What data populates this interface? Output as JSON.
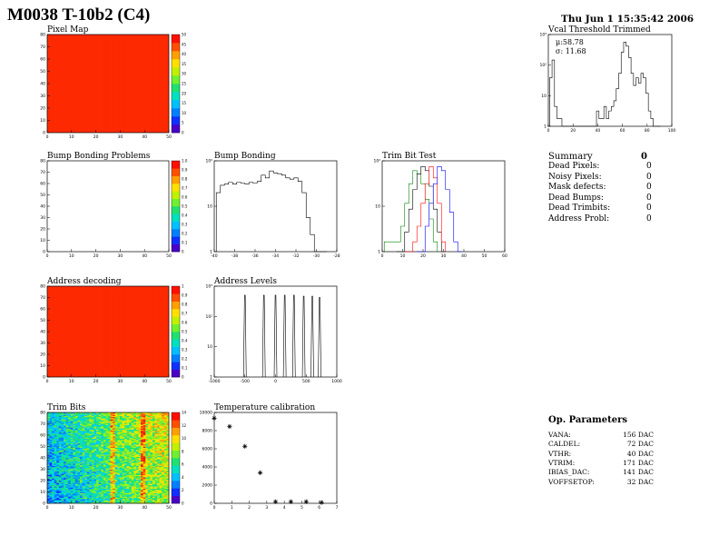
{
  "header": {
    "title": "M0038 T-10b2 (C4)",
    "datetime": "Thu Jun  1 15:35:42 2006"
  },
  "panels": {
    "pixel_map": {
      "title": "Pixel Map"
    },
    "vcal": {
      "title": "Vcal Threshold Trimmed",
      "stats": {
        "mean": "μ:58.78",
        "sigma": "σ: 11.68"
      }
    },
    "bump_problems": {
      "title": "Bump Bonding Problems"
    },
    "bump_bonding": {
      "title": "Bump Bonding"
    },
    "trim_bit_test": {
      "title": "Trim Bit Test"
    },
    "address_decoding": {
      "title": "Address decoding"
    },
    "address_levels": {
      "title": "Address Levels"
    },
    "trim_bits": {
      "title": "Trim Bits"
    },
    "temperature": {
      "title": "Temperature calibration"
    }
  },
  "summary": {
    "title": "Summary",
    "total": "0",
    "rows": [
      {
        "label": "Dead Pixels:",
        "value": "0"
      },
      {
        "label": "Noisy Pixels:",
        "value": "0"
      },
      {
        "label": "Mask defects:",
        "value": "0"
      },
      {
        "label": "Dead Bumps:",
        "value": "0"
      },
      {
        "label": "Dead Trimbits:",
        "value": "0"
      },
      {
        "label": "Address Probl:",
        "value": "0"
      }
    ]
  },
  "op_params": {
    "title": "Op. Parameters",
    "rows": [
      {
        "label": "VANA:",
        "value": "156 DAC"
      },
      {
        "label": "CALDEL:",
        "value": "72 DAC"
      },
      {
        "label": "VTHR:",
        "value": "40 DAC"
      },
      {
        "label": "VTRIM:",
        "value": "171 DAC"
      },
      {
        "label": "IBIAS_DAC:",
        "value": "141 DAC"
      },
      {
        "label": "VOFFSETOP:",
        "value": "32 DAC"
      }
    ]
  },
  "chart_data": [
    {
      "id": "pixel_map",
      "type": "heatmap",
      "title": "Pixel Map",
      "xlim": [
        0,
        52
      ],
      "ylim": [
        0,
        80
      ],
      "xticks": [
        "0",
        "10",
        "20",
        "30",
        "40",
        "50"
      ],
      "yticks": [
        "0",
        "10",
        "20",
        "30",
        "40",
        "50",
        "60",
        "70",
        "80"
      ],
      "zticks": [
        "0",
        "5",
        "10",
        "15",
        "20",
        "25",
        "30",
        "35",
        "40",
        "45",
        "50"
      ],
      "fill_color": "#ff2a00"
    },
    {
      "id": "vcal",
      "type": "line",
      "title": "Vcal Threshold Trimmed",
      "xlim": [
        0,
        100
      ],
      "log_y": true,
      "ylim": [
        0.5,
        2000
      ],
      "xticks": [
        "0",
        "20",
        "40",
        "60",
        "80",
        "100"
      ],
      "yticks": [
        "1",
        "10",
        "10²",
        "10³"
      ],
      "x": [
        0,
        2,
        4,
        6,
        8,
        10,
        12,
        14,
        16,
        18,
        20,
        22,
        24,
        26,
        28,
        30,
        32,
        34,
        36,
        38,
        40,
        42,
        44,
        46,
        48,
        50,
        52,
        54,
        56,
        58,
        60,
        62,
        64,
        66,
        68,
        70,
        72,
        74,
        76,
        78,
        80,
        82,
        84,
        86,
        88,
        90
      ],
      "y": [
        0,
        40,
        200,
        3,
        1,
        1,
        0,
        0,
        0,
        0,
        0,
        0,
        0,
        0,
        0,
        0,
        0,
        0,
        0,
        0,
        2,
        1,
        1,
        3,
        1,
        2,
        3,
        5,
        15,
        60,
        400,
        1000,
        700,
        250,
        60,
        20,
        40,
        25,
        60,
        40,
        10,
        2,
        1,
        0,
        0,
        0
      ]
    },
    {
      "id": "bump_problems",
      "type": "heatmap",
      "title": "Bump Bonding Problems",
      "xlim": [
        0,
        52
      ],
      "ylim": [
        0,
        80
      ],
      "xticks": [
        "0",
        "10",
        "20",
        "30",
        "40",
        "50"
      ],
      "yticks": [
        "0",
        "10",
        "20",
        "30",
        "40",
        "50",
        "60",
        "70",
        "80"
      ],
      "zticks": [
        "0",
        "0.1",
        "0.2",
        "0.3",
        "0.4",
        "0.5",
        "0.6",
        "0.7",
        "0.8",
        "0.9",
        "1.0"
      ],
      "fill_color": "#ffffff"
    },
    {
      "id": "bump_bonding",
      "type": "line",
      "title": "Bump Bonding",
      "xlim": [
        -40,
        -28
      ],
      "log_y": true,
      "ylim": [
        0.5,
        800
      ],
      "xticks": [
        "-40",
        "-38",
        "-36",
        "-34",
        "-32",
        "-30",
        "-28"
      ],
      "yticks": [
        "1",
        "10",
        "10²"
      ],
      "x": [
        -39.6,
        -39.2,
        -38.8,
        -38.4,
        -38.0,
        -37.6,
        -37.2,
        -36.8,
        -36.4,
        -36.0,
        -35.6,
        -35.2,
        -34.8,
        -34.4,
        -34.0,
        -33.6,
        -33.2,
        -32.8,
        -32.4,
        -32.0,
        -31.6,
        -31.2,
        -30.8,
        -30.4,
        -30.0,
        -29.6,
        -29.2
      ],
      "y": [
        60,
        110,
        120,
        140,
        120,
        140,
        130,
        120,
        140,
        130,
        150,
        250,
        200,
        350,
        300,
        280,
        250,
        200,
        180,
        200,
        150,
        60,
        8,
        2,
        0,
        0,
        0
      ]
    },
    {
      "id": "trim_bit_test",
      "type": "line",
      "title": "Trim Bit Test",
      "xlim": [
        0,
        60
      ],
      "log_y": true,
      "ylim": [
        0.5,
        300
      ],
      "xticks": [
        "0",
        "10",
        "20",
        "30",
        "40",
        "50",
        "60"
      ],
      "yticks": [
        "1",
        "10",
        "10²"
      ],
      "series": [
        {
          "color": "#008000",
          "x": [
            2,
            4,
            6,
            8,
            10,
            12,
            14,
            16,
            18,
            20,
            22,
            24,
            26
          ],
          "y": [
            1,
            1,
            1,
            1,
            3,
            15,
            60,
            150,
            120,
            60,
            20,
            5,
            1
          ]
        },
        {
          "color": "#000000",
          "x": [
            8,
            10,
            12,
            14,
            16,
            18,
            20,
            22,
            24,
            26,
            28,
            30
          ],
          "y": [
            0,
            0,
            2,
            10,
            40,
            120,
            200,
            150,
            50,
            10,
            2,
            0
          ]
        },
        {
          "color": "#ff0000",
          "x": [
            12,
            14,
            16,
            18,
            20,
            22,
            24,
            26,
            28,
            30
          ],
          "y": [
            0,
            0,
            1,
            3,
            15,
            60,
            200,
            90,
            15,
            1
          ]
        },
        {
          "color": "#0000ff",
          "x": [
            18,
            20,
            22,
            24,
            26,
            28,
            30,
            32,
            34,
            36,
            38
          ],
          "y": [
            0,
            0,
            3,
            15,
            60,
            200,
            150,
            40,
            8,
            1,
            0
          ]
        }
      ]
    },
    {
      "id": "address_decoding",
      "type": "heatmap",
      "title": "Address decoding",
      "xlim": [
        0,
        52
      ],
      "ylim": [
        0,
        80
      ],
      "xticks": [
        "0",
        "10",
        "20",
        "30",
        "40",
        "50"
      ],
      "yticks": [
        "0",
        "10",
        "20",
        "30",
        "40",
        "50",
        "60",
        "70",
        "80"
      ],
      "zticks": [
        "0",
        "0.1",
        "0.2",
        "0.3",
        "0.4",
        "0.5",
        "0.6",
        "0.7",
        "0.8",
        "0.9",
        "1"
      ],
      "fill_color": "#ff2a00"
    },
    {
      "id": "address_levels",
      "type": "line",
      "title": "Address Levels",
      "xlim": [
        -1000,
        1000
      ],
      "log_y": true,
      "ylim": [
        0.5,
        5000
      ],
      "xticks": [
        "-1000",
        "-500",
        "0",
        "500",
        "1000"
      ],
      "yticks": [
        "1",
        "10",
        "10²",
        "10³"
      ],
      "peaks": [
        {
          "x": -500,
          "y": 2000
        },
        {
          "x": -190,
          "y": 2000
        },
        {
          "x": 0,
          "y": 2000
        },
        {
          "x": 150,
          "y": 2000
        },
        {
          "x": 300,
          "y": 2000
        },
        {
          "x": 460,
          "y": 1800
        },
        {
          "x": 600,
          "y": 1800
        },
        {
          "x": 720,
          "y": 1600
        }
      ]
    },
    {
      "id": "trim_bits",
      "type": "heatmap",
      "title": "Trim Bits",
      "xlim": [
        0,
        52
      ],
      "ylim": [
        0,
        80
      ],
      "xticks": [
        "0",
        "10",
        "20",
        "30",
        "40",
        "50"
      ],
      "yticks": [
        "0",
        "10",
        "20",
        "30",
        "40",
        "50",
        "60",
        "70",
        "80"
      ],
      "zticks": [
        "0",
        "2",
        "4",
        "6",
        "8",
        "10",
        "12",
        "14"
      ]
    },
    {
      "id": "temperature",
      "type": "scatter",
      "title": "Temperature calibration",
      "xlim": [
        0,
        8
      ],
      "ylim": [
        0,
        11000
      ],
      "xticks": [
        "0",
        "1",
        "2",
        "3",
        "4",
        "5",
        "6",
        "7"
      ],
      "yticks": [
        "0",
        "2000",
        "4000",
        "6000",
        "8000",
        "10000"
      ],
      "x": [
        0,
        1,
        2,
        3,
        4,
        5,
        6,
        7
      ],
      "y": [
        10300,
        9300,
        6900,
        3700,
        200,
        200,
        200,
        100
      ]
    }
  ]
}
